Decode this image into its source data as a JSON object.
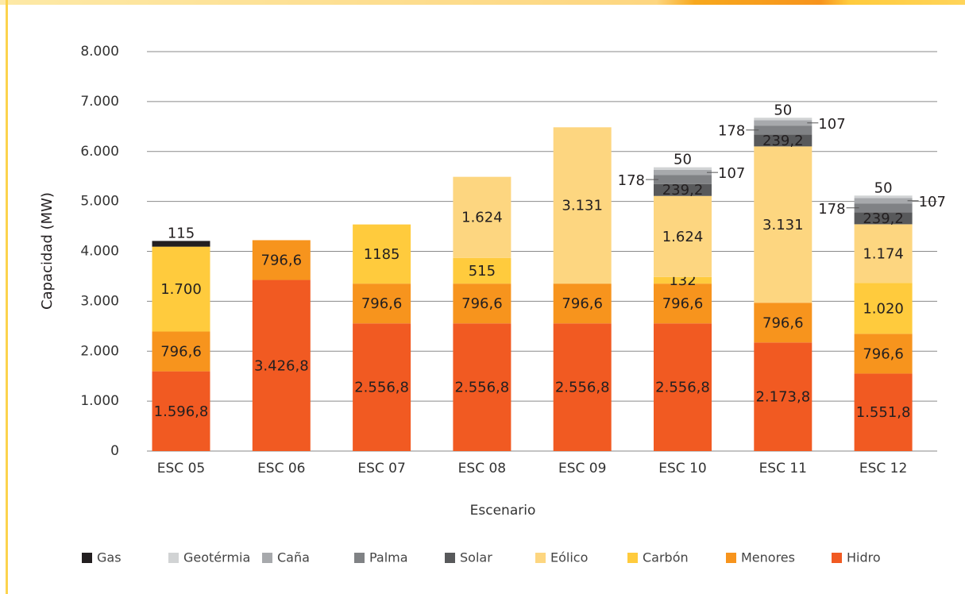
{
  "chart_data": {
    "type": "stacked_bar",
    "y_axis_label": "Capacidad (MW)",
    "x_axis_label": "Escenario",
    "categories": [
      "ESC 05",
      "ESC 06",
      "ESC 07",
      "ESC 08",
      "ESC 09",
      "ESC 10",
      "ESC 11",
      "ESC 12"
    ],
    "series": [
      {
        "name": "Gas",
        "color": "#231f20",
        "values": [
          115,
          null,
          null,
          null,
          null,
          null,
          null,
          null
        ]
      },
      {
        "name": "Geotérmia",
        "color": "#d1d3d4",
        "values": [
          null,
          null,
          null,
          null,
          null,
          50,
          50,
          50
        ]
      },
      {
        "name": "Caña",
        "color": "#a7a9ac",
        "values": [
          null,
          null,
          null,
          null,
          null,
          107,
          107,
          107
        ]
      },
      {
        "name": "Palma",
        "color": "#808285",
        "values": [
          null,
          null,
          null,
          null,
          null,
          178,
          178,
          178
        ]
      },
      {
        "name": "Solar",
        "color": "#58595b",
        "values": [
          null,
          null,
          null,
          null,
          null,
          239.2,
          239.2,
          239.2
        ],
        "value_labels": [
          null,
          null,
          null,
          null,
          null,
          "239,2",
          "239,2",
          "239,2"
        ]
      },
      {
        "name": "Eólico",
        "color": "#fdd680",
        "values": [
          null,
          null,
          null,
          1624,
          3131,
          1624,
          3131,
          1174
        ],
        "value_labels": [
          null,
          null,
          null,
          "1.624",
          "3.131",
          "1.624",
          "3.131",
          "1.174"
        ]
      },
      {
        "name": "Carbón",
        "color": "#ffcb3d",
        "values": [
          1700,
          null,
          1185,
          515,
          null,
          132,
          null,
          1020
        ],
        "value_labels": [
          "1.700",
          null,
          "1185",
          "515",
          null,
          "132",
          null,
          "1.020"
        ]
      },
      {
        "name": "Menores",
        "color": "#f7941d",
        "values": [
          796.6,
          796.6,
          796.6,
          796.6,
          796.6,
          796.6,
          796.6,
          796.6
        ],
        "value_labels": [
          "796,6",
          "796,6",
          "796,6",
          "796,6",
          "796,6",
          "796,6",
          "796,6",
          "796,6"
        ]
      },
      {
        "name": "Hidro",
        "color": "#f15a22",
        "values": [
          1596.8,
          3426.8,
          2556.8,
          2556.8,
          2556.8,
          2556.8,
          2173.8,
          1551.8
        ],
        "value_labels": [
          "1.596,8",
          "3.426,8",
          "2.556,8",
          "2.556,8",
          "2.556,8",
          "2.556,8",
          "2.173,8",
          "1.551,8"
        ]
      }
    ],
    "ylim": [
      0,
      8000
    ],
    "yticks": [
      0,
      {
        "value": 1000,
        "label": "1.000"
      },
      {
        "value": 2000,
        "label": "2.000"
      },
      {
        "value": 3000,
        "label": "3.000"
      },
      {
        "value": 4000,
        "label": "4.000"
      },
      {
        "value": 5000,
        "label": "5.000"
      },
      {
        "value": 6000,
        "label": "6.000"
      },
      {
        "value": 7000,
        "label": "7.000"
      },
      {
        "value": 8000,
        "label": "8.000"
      }
    ],
    "grid": true,
    "legend": "bottom"
  }
}
